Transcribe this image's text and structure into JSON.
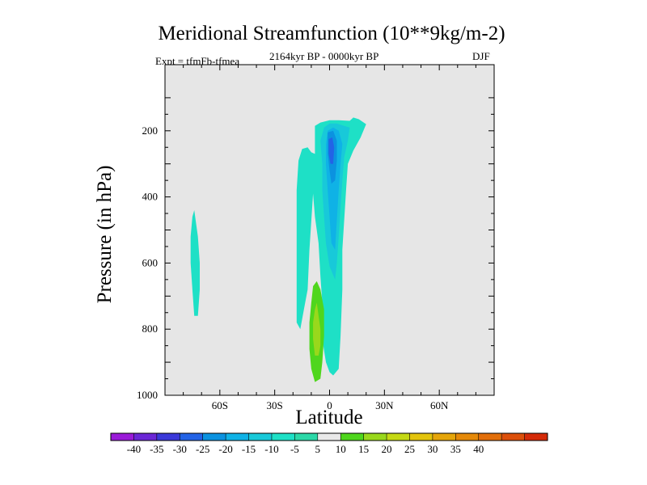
{
  "chart_data": {
    "type": "contour",
    "title": "Meridional Streamfunction (10**9kg/m-2)",
    "left_label": "Expt = tfmFb-tfmea",
    "center_label": "2164kyr BP - 0000kyr BP",
    "right_label": "DJF",
    "xlabel": "Latitude",
    "ylabel": "Pressure (in hPa)",
    "xlim": [
      -90,
      90
    ],
    "ylim": [
      0,
      1000
    ],
    "x_ticks": [
      "60S",
      "30S",
      "0",
      "30N",
      "60N"
    ],
    "x_tick_values": [
      -60,
      -30,
      0,
      30,
      60
    ],
    "y_ticks": [
      "200",
      "400",
      "600",
      "800",
      "1000"
    ],
    "y_tick_values": [
      200,
      400,
      600,
      800,
      1000
    ],
    "background_color": "#e6e6e6",
    "colorbar": {
      "labels": [
        "-40",
        "-35",
        "-30",
        "-25",
        "-20",
        "-15",
        "-10",
        "-5",
        "5",
        "10",
        "15",
        "20",
        "25",
        "30",
        "35",
        "40"
      ],
      "colors": [
        "#9a1bd8",
        "#6b27d6",
        "#3b39d9",
        "#2363e6",
        "#0b92e0",
        "#0fb2e6",
        "#18c9d9",
        "#1ee0c6",
        "#2cd8a8",
        "#e9e9e9",
        "#4fd61d",
        "#99d81c",
        "#c5d914",
        "#e3c40c",
        "#e5a50a",
        "#e58909",
        "#e26e0a",
        "#dc4f0a",
        "#d42a08"
      ]
    },
    "regions": [
      {
        "name": "southern-polar-negative-cell",
        "level": -10,
        "color": "#1ee0c6",
        "points": [
          [
            -74,
            440
          ],
          [
            -72,
            520
          ],
          [
            -71,
            600
          ],
          [
            -71,
            680
          ],
          [
            -72,
            760
          ],
          [
            -74,
            760
          ],
          [
            -75,
            680
          ],
          [
            -76,
            600
          ],
          [
            -76,
            520
          ],
          [
            -75,
            460
          ]
        ]
      },
      {
        "name": "tropical-negative-cell",
        "level": -10,
        "color": "#1ee0c6",
        "points": [
          [
            -18,
            780
          ],
          [
            -18,
            560
          ],
          [
            -18,
            380
          ],
          [
            -17,
            290
          ],
          [
            -15,
            255
          ],
          [
            -12,
            250
          ],
          [
            -10,
            265
          ],
          [
            -8,
            270
          ],
          [
            -8,
            185
          ],
          [
            -5,
            175
          ],
          [
            0,
            168
          ],
          [
            5,
            168
          ],
          [
            11,
            170
          ],
          [
            13,
            160
          ],
          [
            16,
            165
          ],
          [
            20,
            180
          ],
          [
            17,
            220
          ],
          [
            13,
            260
          ],
          [
            10,
            300
          ],
          [
            9,
            380
          ],
          [
            8,
            470
          ],
          [
            7,
            560
          ],
          [
            7,
            680
          ],
          [
            6,
            820
          ],
          [
            5,
            920
          ],
          [
            2,
            940
          ],
          [
            0,
            930
          ],
          [
            -2,
            900
          ],
          [
            -4,
            830
          ],
          [
            -4,
            720
          ],
          [
            -5,
            640
          ],
          [
            -6,
            540
          ],
          [
            -8,
            460
          ],
          [
            -9,
            390
          ],
          [
            -11,
            560
          ],
          [
            -12,
            680
          ],
          [
            -14,
            740
          ],
          [
            -16,
            800
          ]
        ]
      },
      {
        "name": "core-negative-15",
        "level": -15,
        "color": "#18c9d9",
        "points": [
          [
            -3,
            190
          ],
          [
            0,
            178
          ],
          [
            4,
            178
          ],
          [
            8,
            185
          ],
          [
            11,
            190
          ],
          [
            10,
            230
          ],
          [
            8,
            280
          ],
          [
            7,
            350
          ],
          [
            6,
            430
          ],
          [
            5,
            520
          ],
          [
            4,
            600
          ],
          [
            3,
            650
          ],
          [
            0,
            610
          ],
          [
            -2,
            540
          ],
          [
            -3,
            460
          ],
          [
            -4,
            380
          ],
          [
            -4,
            300
          ],
          [
            -5,
            230
          ]
        ]
      },
      {
        "name": "core-negative-20",
        "level": -20,
        "color": "#0fb2e6",
        "points": [
          [
            -1,
            200
          ],
          [
            2,
            190
          ],
          [
            5,
            200
          ],
          [
            7,
            240
          ],
          [
            6,
            300
          ],
          [
            5,
            380
          ],
          [
            4,
            470
          ],
          [
            3,
            560
          ],
          [
            1,
            540
          ],
          [
            0,
            460
          ],
          [
            -1,
            380
          ],
          [
            -2,
            300
          ],
          [
            -2,
            240
          ]
        ]
      },
      {
        "name": "core-negative-25",
        "level": -25,
        "color": "#0b92e0",
        "points": [
          [
            -1,
            205
          ],
          [
            2,
            200
          ],
          [
            4,
            230
          ],
          [
            4,
            290
          ],
          [
            3,
            350
          ],
          [
            1,
            360
          ],
          [
            0,
            320
          ],
          [
            -1,
            270
          ]
        ]
      },
      {
        "name": "core-negative-30",
        "level": -30,
        "color": "#2363e6",
        "points": [
          [
            -0.5,
            225
          ],
          [
            1.5,
            220
          ],
          [
            2.5,
            250
          ],
          [
            2,
            300
          ],
          [
            0.5,
            300
          ],
          [
            -0.5,
            270
          ]
        ]
      },
      {
        "name": "southern-positive-cell-5",
        "level": 5,
        "color": "#4fd61d",
        "points": [
          [
            -8,
            960
          ],
          [
            -10,
            920
          ],
          [
            -11,
            860
          ],
          [
            -11,
            780
          ],
          [
            -10,
            720
          ],
          [
            -9,
            670
          ],
          [
            -7,
            655
          ],
          [
            -5,
            680
          ],
          [
            -3,
            740
          ],
          [
            -3,
            820
          ],
          [
            -4,
            900
          ],
          [
            -5,
            950
          ]
        ]
      },
      {
        "name": "southern-positive-cell-10",
        "level": 10,
        "color": "#99d81c",
        "points": [
          [
            -8,
            880
          ],
          [
            -9,
            830
          ],
          [
            -9,
            780
          ],
          [
            -8,
            740
          ],
          [
            -7,
            720
          ],
          [
            -6,
            760
          ],
          [
            -5,
            800
          ],
          [
            -5,
            850
          ],
          [
            -6,
            880
          ]
        ]
      }
    ]
  }
}
